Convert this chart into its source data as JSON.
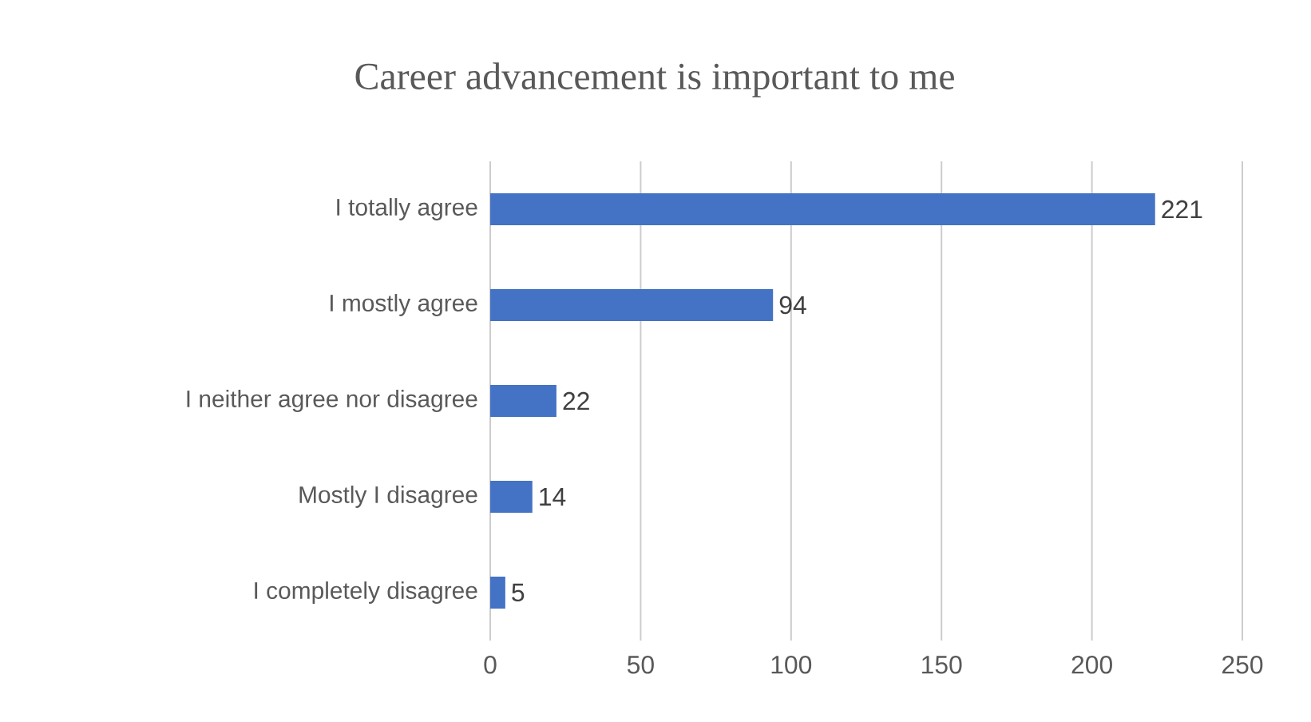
{
  "chart_data": {
    "type": "bar",
    "orientation": "horizontal",
    "title": "Career advancement is important to me",
    "categories": [
      "I totally agree",
      "I mostly agree",
      "I neither agree nor disagree",
      "Mostly I disagree",
      "I completely disagree"
    ],
    "values": [
      221,
      94,
      22,
      14,
      5
    ],
    "color": "#4472c4",
    "xlim": [
      0,
      250
    ],
    "xticks": [
      0,
      50,
      100,
      150,
      200,
      250
    ],
    "grid": "x",
    "data_labels": true
  }
}
